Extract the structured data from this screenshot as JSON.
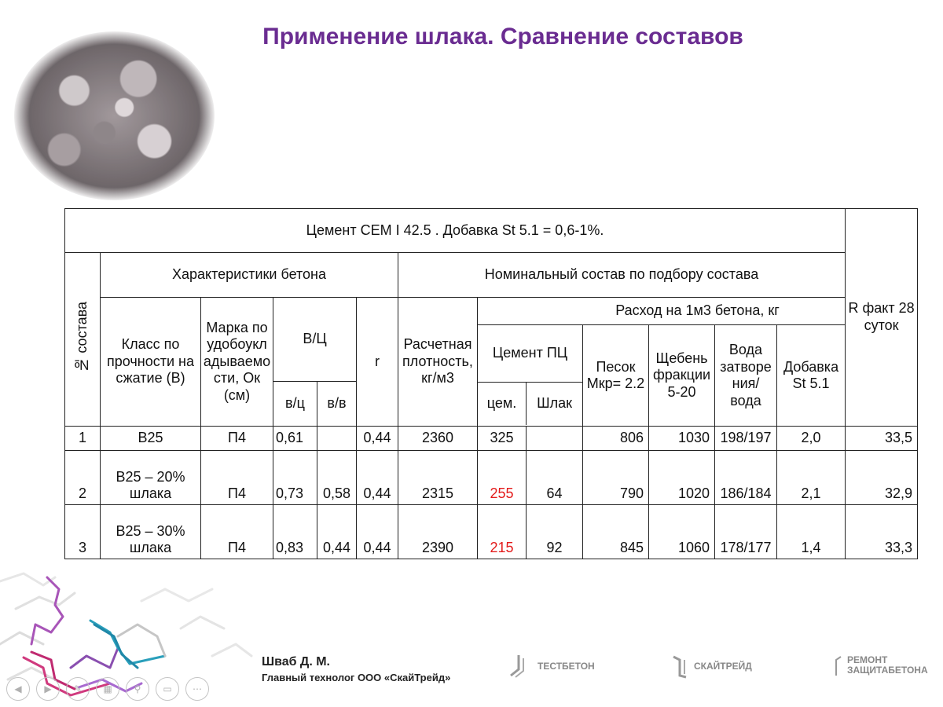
{
  "title": "Применение шлака. Сравнение составов",
  "table": {
    "top_header": "Цемент CEM I 42.5  . Добавка St 5.1 = 0,6-1%.",
    "col_no": "№ состава",
    "group_characteristics": "Характеристики бетона",
    "group_nominal": "Номинальный состав по подбору состава",
    "col_r_fact": "R факт 28 суток",
    "col_class": "Класс по прочности на сжатие (В)",
    "col_marka": "Марка по удобоукл адываемо сти, Ок (см)",
    "col_vc": "В/Ц",
    "col_vc_sub1": "в/ц",
    "col_vc_sub2": "в/в",
    "col_r": "r",
    "col_density": "Расчетная плотность, кг/м3",
    "group_consumption": "Расход на 1м3 бетона, кг",
    "col_cement": "Цемент ПЦ",
    "col_cement_sub1": "цем.",
    "col_cement_sub2": "Шлак",
    "col_sand": "Песок Мкр= 2.2",
    "col_gravel": "Щебень фракции 5-20",
    "col_water": "Вода затворе ния/ вода",
    "col_additive": "Добавка St 5.1",
    "rows": [
      {
        "no": "1",
        "class": "B25",
        "marka": "П4",
        "vc": "0,61",
        "vv": "",
        "r": "0,44",
        "density": "2360",
        "cem": "325",
        "slag": "",
        "sand": "806",
        "gravel": "1030",
        "water": "198/197",
        "additive": "2,0",
        "r_fact": "33,5"
      },
      {
        "no": "2",
        "class": "B25 – 20% шлака",
        "marka": "П4",
        "vc": "0,73",
        "vv": "0,58",
        "r": "0,44",
        "density": "2315",
        "cem": "255",
        "slag": "64",
        "sand": "790",
        "gravel": "1020",
        "water": "186/184",
        "additive": "2,1",
        "r_fact": "32,9"
      },
      {
        "no": "3",
        "class": "B25 – 30% шлака",
        "marka": "П4",
        "vc": "0,83",
        "vv": "0,44",
        "r": "0,44",
        "density": "2390",
        "cem": "215",
        "slag": "92",
        "sand": "845",
        "gravel": "1060",
        "water": "178/177",
        "additive": "1,4",
        "r_fact": "33,3"
      }
    ]
  },
  "footer": {
    "author_name": "Шваб Д. М.",
    "author_role": "Главный технолог ООО «СкайТрейд»",
    "logos": [
      "ТЕСТБЕТОН",
      "СКАЙТРЕЙД",
      "РЕМОНТ ЗАЩИТАБЕТОНА"
    ]
  },
  "colors": {
    "title": "#6a2c91",
    "highlight": "#e31b1b"
  }
}
